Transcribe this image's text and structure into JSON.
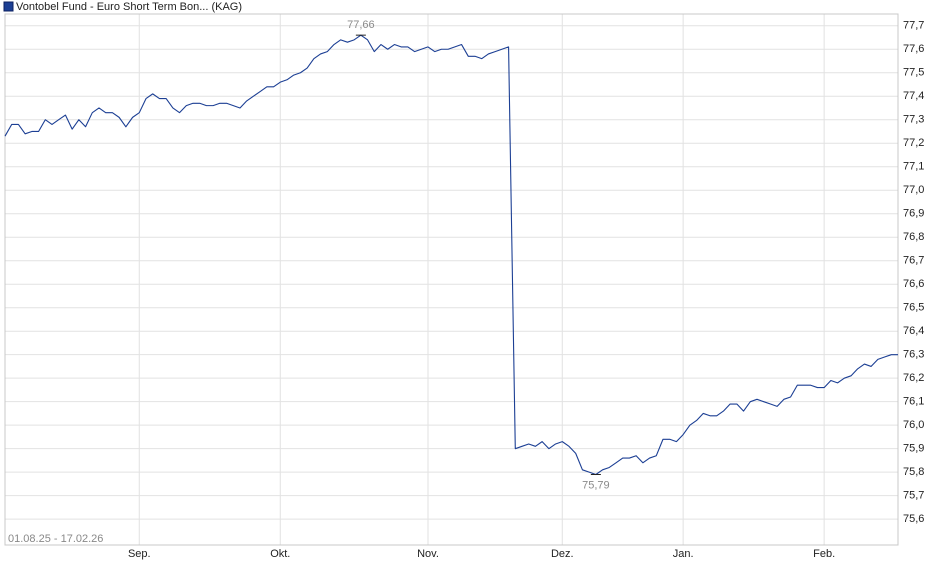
{
  "chart_data": {
    "type": "line",
    "legend_position": "top-left",
    "date_range": "01.08.25 - 17.02.26",
    "grid": true,
    "series": [
      {
        "name": "Vontobel Fund - Euro Short Term Bon... (KAG)",
        "color": "#1c3f94",
        "values": [
          77.23,
          77.28,
          77.28,
          77.24,
          77.25,
          77.25,
          77.3,
          77.28,
          77.3,
          77.32,
          77.26,
          77.3,
          77.27,
          77.33,
          77.35,
          77.33,
          77.33,
          77.31,
          77.27,
          77.31,
          77.33,
          77.39,
          77.41,
          77.39,
          77.39,
          77.35,
          77.33,
          77.36,
          77.37,
          77.37,
          77.36,
          77.36,
          77.37,
          77.37,
          77.36,
          77.35,
          77.38,
          77.4,
          77.42,
          77.44,
          77.44,
          77.46,
          77.47,
          77.49,
          77.5,
          77.52,
          77.56,
          77.58,
          77.59,
          77.62,
          77.64,
          77.63,
          77.64,
          77.66,
          77.64,
          77.59,
          77.62,
          77.6,
          77.62,
          77.61,
          77.61,
          77.59,
          77.6,
          77.61,
          77.59,
          77.6,
          77.6,
          77.61,
          77.62,
          77.57,
          77.57,
          77.56,
          77.58,
          77.59,
          77.6,
          77.61,
          75.9,
          75.91,
          75.92,
          75.91,
          75.93,
          75.9,
          75.92,
          75.93,
          75.91,
          75.88,
          75.81,
          75.8,
          75.79,
          75.81,
          75.82,
          75.84,
          75.86,
          75.86,
          75.87,
          75.84,
          75.86,
          75.87,
          75.94,
          75.94,
          75.93,
          75.96,
          76.0,
          76.02,
          76.05,
          76.04,
          76.04,
          76.06,
          76.09,
          76.09,
          76.06,
          76.1,
          76.11,
          76.1,
          76.09,
          76.08,
          76.11,
          76.12,
          76.17,
          76.17,
          76.17,
          76.16,
          76.16,
          76.19,
          76.18,
          76.2,
          76.21,
          76.24,
          76.26,
          76.25,
          76.28,
          76.29,
          76.3,
          76.3
        ],
        "value_labels": [
          null,
          null,
          null,
          null,
          null,
          null,
          null,
          null,
          null,
          null,
          null,
          null,
          null,
          null,
          null,
          null,
          null,
          null,
          null,
          null,
          null,
          null,
          null,
          null,
          null,
          null,
          null,
          null,
          null,
          null,
          null,
          null,
          null,
          null,
          null,
          null,
          null,
          null,
          null,
          null,
          null,
          null,
          null,
          null,
          null,
          null,
          null,
          null,
          null,
          null,
          null,
          null,
          null,
          "77,66",
          null,
          null,
          null,
          null,
          null,
          null,
          null,
          null,
          null,
          null,
          null,
          null,
          null,
          null,
          null,
          null,
          null,
          null,
          null,
          null,
          null,
          null,
          null,
          null,
          null,
          null,
          null,
          null,
          null,
          null,
          null,
          null,
          null,
          null,
          "75,79",
          null,
          null,
          null,
          null,
          null,
          null,
          null,
          null,
          null,
          null,
          null,
          null,
          null,
          null,
          null,
          null,
          null,
          null,
          null,
          null,
          null,
          null,
          null,
          null,
          null,
          null,
          null,
          null,
          null,
          null,
          null,
          null,
          null,
          null,
          null,
          null,
          null,
          null,
          null,
          null,
          null,
          null,
          null,
          null,
          null
        ]
      }
    ],
    "xticks": [
      {
        "value": 20,
        "label": "Sep."
      },
      {
        "value": 41,
        "label": "Okt."
      },
      {
        "value": 63,
        "label": "Nov."
      },
      {
        "value": 83,
        "label": "Dez."
      },
      {
        "value": 101,
        "label": "Jan."
      },
      {
        "value": 122,
        "label": "Feb."
      }
    ],
    "ylim": [
      75.49,
      77.75
    ],
    "yticks": [
      {
        "value": 75.6,
        "label": "75,6"
      },
      {
        "value": 75.7,
        "label": "75,7"
      },
      {
        "value": 75.8,
        "label": "75,8"
      },
      {
        "value": 75.9,
        "label": "75,9"
      },
      {
        "value": 76.0,
        "label": "76,0"
      },
      {
        "value": 76.1,
        "label": "76,1"
      },
      {
        "value": 76.2,
        "label": "76,2"
      },
      {
        "value": 76.3,
        "label": "76,3"
      },
      {
        "value": 76.4,
        "label": "76,4"
      },
      {
        "value": 76.5,
        "label": "76,5"
      },
      {
        "value": 76.6,
        "label": "76,6"
      },
      {
        "value": 76.7,
        "label": "76,7"
      },
      {
        "value": 76.8,
        "label": "76,8"
      },
      {
        "value": 76.9,
        "label": "76,9"
      },
      {
        "value": 77.0,
        "label": "77,0"
      },
      {
        "value": 77.1,
        "label": "77,1"
      },
      {
        "value": 77.2,
        "label": "77,2"
      },
      {
        "value": 77.3,
        "label": "77,3"
      },
      {
        "value": 77.4,
        "label": "77,4"
      },
      {
        "value": 77.5,
        "label": "77,5"
      },
      {
        "value": 77.6,
        "label": "77,6"
      },
      {
        "value": 77.7,
        "label": "77,7"
      }
    ]
  }
}
